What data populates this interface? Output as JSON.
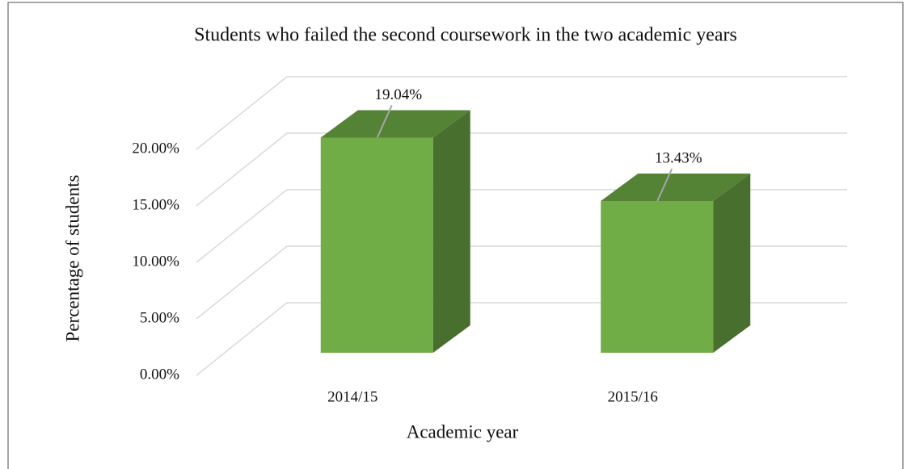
{
  "chart_data": {
    "type": "bar3d",
    "title": "Students who failed the second coursework in the two academic years",
    "x_label": "Academic year",
    "y_label": "Percentage of students",
    "categories": [
      "2014/15",
      "2015/16"
    ],
    "values": [
      19.04,
      13.43
    ],
    "value_labels": [
      "19.04%",
      "13.43%"
    ],
    "color": "#70ad47",
    "ylim": [
      0,
      20
    ],
    "yticks": [
      {
        "value": 0,
        "label": "0.00%"
      },
      {
        "value": 5,
        "label": "5.00%"
      },
      {
        "value": 10,
        "label": "10.00%"
      },
      {
        "value": 15,
        "label": "15.00%"
      },
      {
        "value": 20,
        "label": "20.00%"
      }
    ],
    "grid": true
  }
}
